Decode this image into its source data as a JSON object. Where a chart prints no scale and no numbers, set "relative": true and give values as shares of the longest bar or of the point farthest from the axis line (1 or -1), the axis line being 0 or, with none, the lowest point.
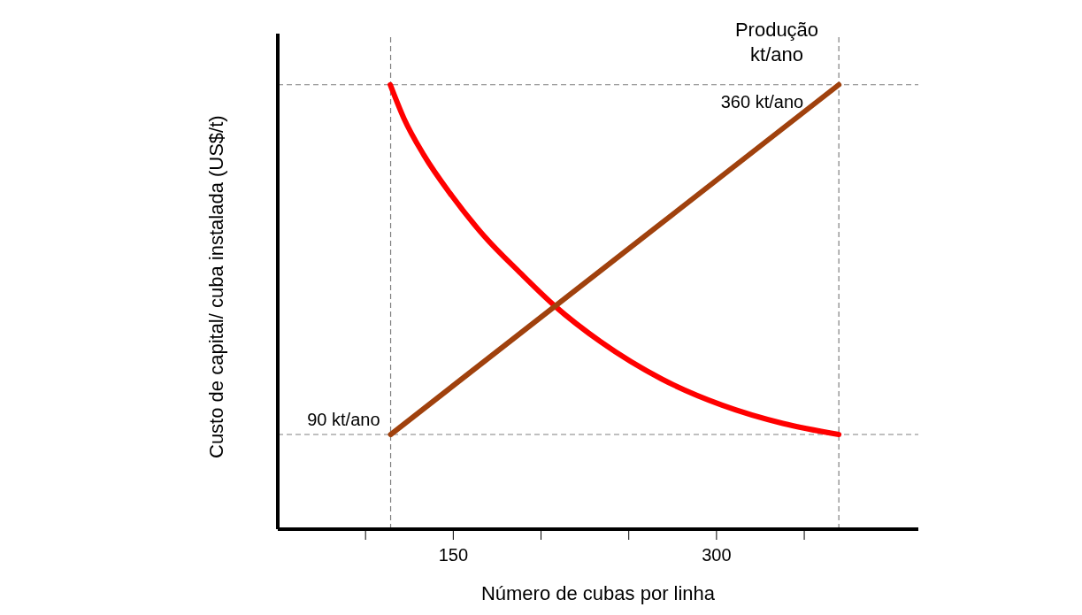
{
  "chart_data": {
    "type": "line",
    "relative": true,
    "xlabel": "Número de cubas por linha",
    "ylabel": "Custo de capital/ cuba instalada (US$/t)",
    "xlim": [
      50,
      415
    ],
    "xticks": [
      {
        "value": 100,
        "label": null
      },
      150,
      {
        "value": 200,
        "label": null
      },
      {
        "value": 250,
        "label": null
      },
      300,
      {
        "value": 350,
        "label": null
      }
    ],
    "marker": "none",
    "line_style": "solid",
    "series": [
      {
        "color": "#ff0000",
        "x": [
          114.1,
          121.9,
          133.2,
          149.2,
          167.7,
          188.3,
          207.9,
          234.2,
          268.7,
          303.2,
          337.8,
          369.7
        ],
        "values": [
          1,
          0.924,
          0.842,
          0.75,
          0.659,
          0.576,
          0.502,
          0.421,
          0.338,
          0.279,
          0.238,
          0.213
        ]
      },
      {
        "color": "#a0410d",
        "x": [
          114.3,
          369.7
        ],
        "values": [
          0.213,
          1
        ]
      }
    ],
    "ref_lines": [
      {
        "axis": "y",
        "value": 1,
        "color": "#808080",
        "line_style": "dashed"
      },
      {
        "axis": "y",
        "value": 0.213,
        "color": "#808080",
        "line_style": "dashed"
      },
      {
        "axis": "x",
        "value": 114.3,
        "color": "#808080",
        "line_style": "dashed"
      },
      {
        "axis": "x",
        "value": 369.7,
        "color": "#808080",
        "line_style": "dashed"
      }
    ],
    "annotations": [
      "Produção\nkt/ano",
      {
        "text": "360 kt/ano",
        "x": 369.7,
        "y": 1
      },
      {
        "text": "90 kt/ano",
        "x": 114.3,
        "y": 0.213
      }
    ]
  }
}
